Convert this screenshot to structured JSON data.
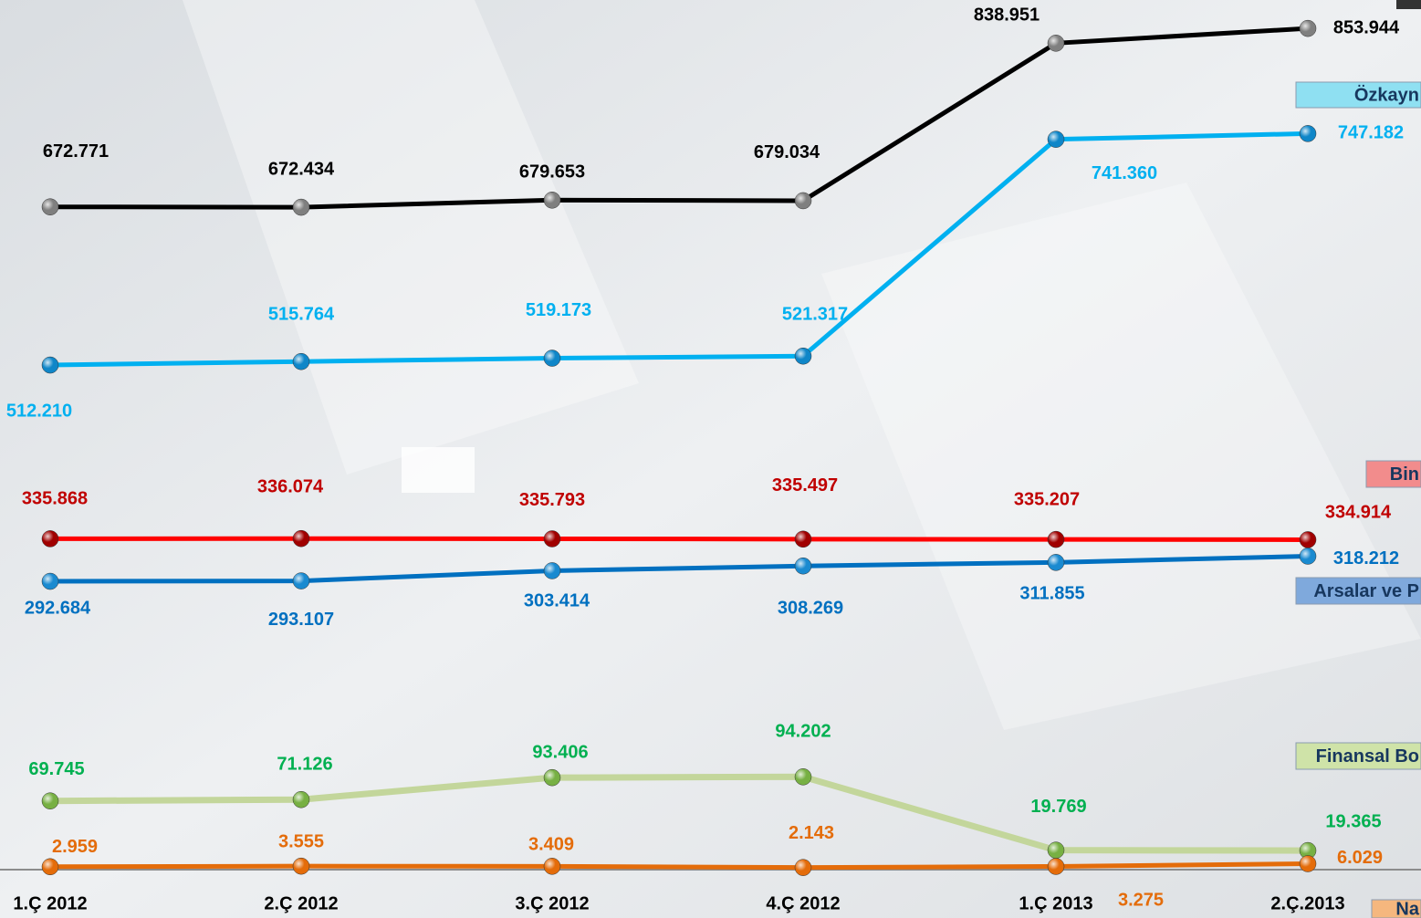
{
  "chart_data": {
    "type": "line",
    "categories": [
      "1.Ç 2012",
      "2.Ç 2012",
      "3.Ç 2012",
      "4.Ç 2012",
      "1.Ç 2013",
      "2.Ç.2013"
    ],
    "ylim": [
      0,
      880000
    ],
    "series": [
      {
        "color": "#000000",
        "marker_color": "#7f7f7f",
        "label_color": "#000000",
        "values": [
          672771,
          672434,
          679653,
          679034,
          838951,
          853944
        ],
        "value_labels": [
          "672.771",
          "672.434",
          "679.653",
          "679.034",
          "838.951",
          "853.944"
        ]
      },
      {
        "name": "Özkayn",
        "color": "#00b0f0",
        "marker_color": "#0f86c8",
        "label_color": "#00b0f0",
        "legend_color": "#8fe0f2",
        "values": [
          512210,
          515764,
          519173,
          521317,
          741360,
          747182
        ],
        "value_labels": [
          "512.210",
          "515.764",
          "519.173",
          "521.317",
          "741.360",
          "747.182"
        ]
      },
      {
        "name": "Bin",
        "color": "#ff0000",
        "marker_color": "#a00000",
        "label_color": "#c00000",
        "legend_color": "#f28c8c",
        "values": [
          335868,
          336074,
          335793,
          335497,
          335207,
          334914
        ],
        "value_labels": [
          "335.868",
          "336.074",
          "335.793",
          "335.497",
          "335.207",
          "334.914"
        ]
      },
      {
        "name": "Arsalar ve P",
        "color": "#0070c0",
        "marker_color": "#1a8ad0",
        "label_color": "#0070c0",
        "legend_color": "#7fa9dc",
        "values": [
          292684,
          293107,
          303414,
          308269,
          311855,
          318212
        ],
        "value_labels": [
          "292.684",
          "293.107",
          "303.414",
          "308.269",
          "311.855",
          "318.212"
        ]
      },
      {
        "name": "Finansal Bo",
        "color": "#c3d69b",
        "marker_color": "#77b043",
        "label_color": "#00b050",
        "legend_color": "#cfe3a8",
        "values": [
          69745,
          71126,
          93406,
          94202,
          19769,
          19365
        ],
        "value_labels": [
          "69.745",
          "71.126",
          "93.406",
          "94.202",
          "19.769",
          "19.365"
        ]
      },
      {
        "name": "Na",
        "color": "#e46c0a",
        "marker_color": "#e46c0a",
        "label_color": "#e46c0a",
        "legend_color": "#f5b77e",
        "values": [
          2959,
          3555,
          3409,
          2143,
          3275,
          6029
        ],
        "value_labels": [
          "2.959",
          "3.555",
          "3.409",
          "2.143",
          "3.275",
          "6.029"
        ]
      }
    ]
  }
}
